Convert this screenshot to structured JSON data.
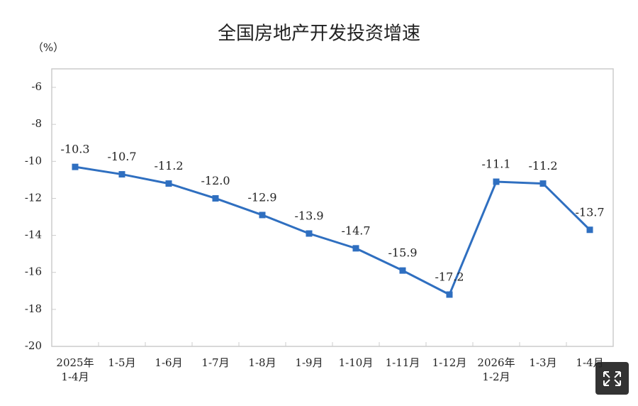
{
  "chart_data": {
    "type": "line",
    "title": "全国房地产开发投资增速",
    "unit_label": "（%）",
    "categories": [
      "2025年\n1-4月",
      "1-5月",
      "1-6月",
      "1-7月",
      "1-8月",
      "1-9月",
      "1-10月",
      "1-11月",
      "1-12月",
      "2026年\n1-2月",
      "1-3月",
      "1-4月"
    ],
    "values": [
      -10.3,
      -10.7,
      -11.2,
      -12.0,
      -12.9,
      -13.9,
      -14.7,
      -15.9,
      -17.2,
      -11.1,
      -11.2,
      -13.7
    ],
    "value_labels": [
      "-10.3",
      "-10.7",
      "-11.2",
      "-12.0",
      "-12.9",
      "-13.9",
      "-14.7",
      "-15.9",
      "-17.2",
      "-11.1",
      "-11.2",
      "-13.7"
    ],
    "color": "#2f6fc0",
    "ylim": [
      -20,
      -5
    ],
    "yticks": [
      -6,
      -8,
      -10,
      -12,
      -14,
      -16,
      -18,
      -20
    ]
  }
}
